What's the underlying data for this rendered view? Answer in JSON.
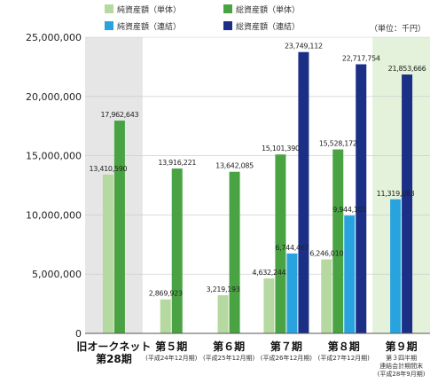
{
  "chart_data": {
    "type": "bar",
    "unit": "（単位：千円）",
    "ylim": [
      0,
      25000000
    ],
    "yticks": [
      "0",
      "5,000,000",
      "10,000,000",
      "15,000,000",
      "20,000,000",
      "25,000,000"
    ],
    "grid": true,
    "legend_placement": "top",
    "series": [
      {
        "name": "純資産額（単体）",
        "color": "#b5d9a0",
        "values": [
          13410590,
          2869923,
          3219193,
          4632244,
          6246010,
          null
        ],
        "labels": [
          "13,410,590",
          "2,869,923",
          "3,219,193",
          "4,632,244",
          "6,246,010",
          ""
        ]
      },
      {
        "name": "総資産額（単体）",
        "color": "#4aa342",
        "values": [
          17962643,
          13916221,
          13642085,
          15101390,
          15528172,
          null
        ],
        "labels": [
          "17,962,643",
          "13,916,221",
          "13,642,085",
          "15,101,390",
          "15,528,172",
          ""
        ]
      },
      {
        "name": "純資産額（連結）",
        "color": "#29a3dd",
        "values": [
          null,
          null,
          null,
          6744467,
          9944101,
          11319083
        ],
        "labels": [
          "",
          "",
          "",
          "6,744,467",
          "9,944,101",
          "11,319,083"
        ]
      },
      {
        "name": "総資産額（連結）",
        "color": "#1b2f86",
        "values": [
          null,
          null,
          null,
          23749112,
          22717754,
          21853666
        ],
        "labels": [
          "",
          "",
          "",
          "23,749,112",
          "22,717,754",
          "21,853,666"
        ]
      }
    ],
    "categories": [
      {
        "lines": [
          "旧オークネット",
          "第28期"
        ],
        "sub": []
      },
      {
        "lines": [
          "第５期"
        ],
        "sub": [
          "(平成24年12月期)"
        ]
      },
      {
        "lines": [
          "第６期"
        ],
        "sub": [
          "(平成25年12月期)"
        ]
      },
      {
        "lines": [
          "第７期"
        ],
        "sub": [
          "(平成26年12月期)"
        ]
      },
      {
        "lines": [
          "第８期"
        ],
        "sub": [
          "(平成27年12月期)"
        ]
      },
      {
        "lines": [
          "第９期"
        ],
        "sub": [
          "第３四半期",
          "連結会計期間末",
          "(平成28年9月期)"
        ]
      }
    ],
    "background_bands": [
      {
        "category_index": 0,
        "color": "#e6e6e6"
      },
      {
        "category_index": 5,
        "color": "#e4f2dc"
      }
    ]
  }
}
